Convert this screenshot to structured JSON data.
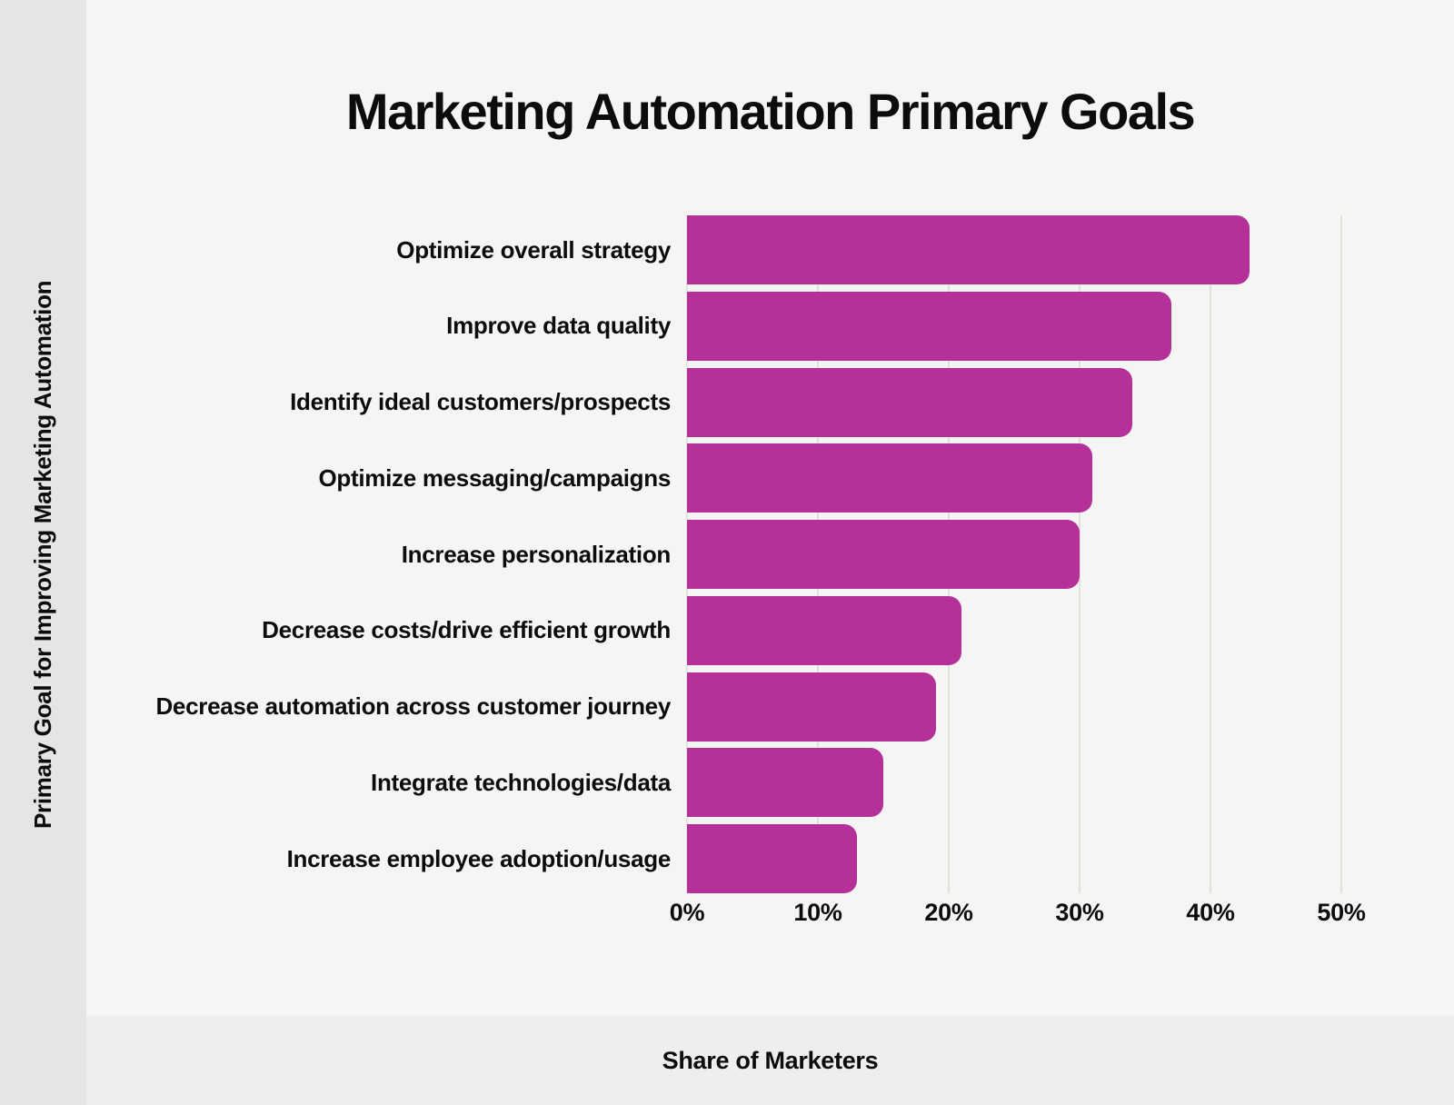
{
  "title": "Marketing Automation Primary Goals",
  "y_axis_label": "Primary Goal for Improving Marketing Automation",
  "x_axis_label": "Share of Marketers",
  "colors": {
    "bar": "#b53099",
    "background": "#f5f5f4",
    "left_strip": "#e5e5e5",
    "bottom_strip": "#eeeeee",
    "gridline": "#e3e1de",
    "text": "#0c0c0c"
  },
  "chart_data": {
    "type": "bar",
    "orientation": "horizontal",
    "title": "Marketing Automation Primary Goals",
    "xlabel": "Share of Marketers",
    "ylabel": "Primary Goal for Improving Marketing Automation",
    "categories": [
      "Optimize overall strategy",
      "Improve data quality",
      "Identify ideal customers/prospects",
      "Optimize messaging/campaigns",
      "Increase personalization",
      "Decrease costs/drive efficient growth",
      "Decrease automation across customer journey",
      "Integrate technologies/data",
      "Increase employee adoption/usage"
    ],
    "values": [
      43,
      37,
      34,
      31,
      30,
      21,
      19,
      15,
      13
    ],
    "unit": "%",
    "xlim": [
      0,
      50
    ],
    "x_ticks": [
      "0%",
      "10%",
      "20%",
      "30%",
      "40%",
      "50%"
    ],
    "grid": true,
    "legend": false
  }
}
